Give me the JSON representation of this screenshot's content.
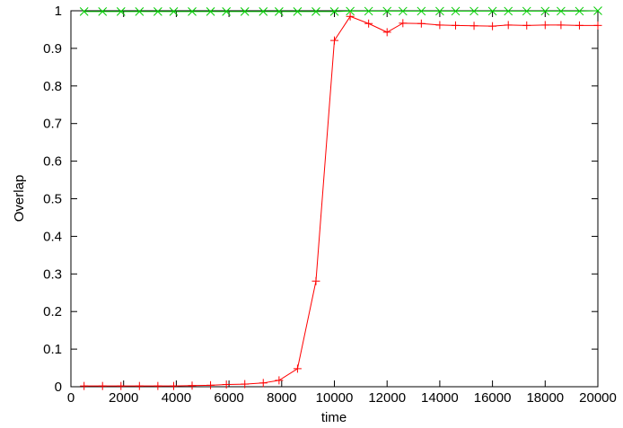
{
  "chart_data": {
    "type": "line",
    "title": "",
    "xlabel": "time",
    "ylabel": "Overlap",
    "xlim": [
      0,
      20000
    ],
    "ylim": [
      0,
      1
    ],
    "xticks": [
      0,
      2000,
      4000,
      6000,
      8000,
      10000,
      12000,
      14000,
      16000,
      18000,
      20000
    ],
    "yticks": [
      0,
      0.1,
      0.2,
      0.3,
      0.4,
      0.5,
      0.6,
      0.7,
      0.8,
      0.9,
      1
    ],
    "xtick_labels": [
      "0",
      "2000",
      "4000",
      "6000",
      "8000",
      "10000",
      "12000",
      "14000",
      "16000",
      "18000",
      "20000"
    ],
    "ytick_labels": [
      "0",
      "0.1",
      "0.2",
      "0.3",
      "0.4",
      "0.5",
      "0.6",
      "0.7",
      "0.8",
      "0.9",
      "1"
    ],
    "grid": false,
    "legend": false,
    "series": [
      {
        "marker": "plus",
        "color": "#ff0000",
        "x": [
          500,
          1200,
          1900,
          2600,
          3300,
          3900,
          4600,
          5300,
          5900,
          6600,
          7300,
          7900,
          8600,
          9300,
          10000,
          10600,
          11300,
          12000,
          12600,
          13300,
          14000,
          14600,
          15300,
          16000,
          16600,
          17300,
          18000,
          18600,
          19300,
          20000
        ],
        "y": [
          0.002,
          0.002,
          0.002,
          0.002,
          0.002,
          0.002,
          0.003,
          0.004,
          0.006,
          0.007,
          0.01,
          0.017,
          0.048,
          0.281,
          0.921,
          0.985,
          0.966,
          0.943,
          0.967,
          0.966,
          0.962,
          0.961,
          0.96,
          0.959,
          0.962,
          0.961,
          0.962,
          0.962,
          0.961,
          0.961
        ]
      },
      {
        "marker": "cross",
        "color": "#00cc00",
        "x": [
          500,
          1200,
          1900,
          2600,
          3300,
          3900,
          4600,
          5300,
          5900,
          6600,
          7300,
          7900,
          8600,
          9300,
          10000,
          10600,
          11300,
          12000,
          12600,
          13300,
          14000,
          14600,
          15300,
          16000,
          16600,
          17300,
          18000,
          18600,
          19300,
          20000
        ],
        "y": [
          0.998,
          0.998,
          0.998,
          0.998,
          0.998,
          0.998,
          0.998,
          0.998,
          0.998,
          0.998,
          0.998,
          0.998,
          0.998,
          0.998,
          0.998,
          0.999,
          0.999,
          0.999,
          0.999,
          0.999,
          0.999,
          0.999,
          0.999,
          0.999,
          0.999,
          0.999,
          0.999,
          0.999,
          0.999,
          1.0
        ]
      }
    ]
  }
}
